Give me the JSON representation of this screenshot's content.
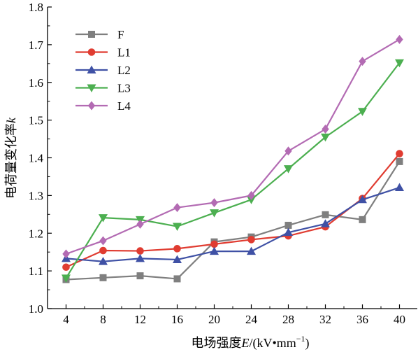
{
  "chart_data": {
    "type": "line",
    "xlabel": "电场强度E/(kV•mm⁻¹)",
    "xlabel_parts": {
      "prefix": "电场强度",
      "var": "E",
      "unit": "/(kV•mm",
      "sup": "−1",
      "close": ")"
    },
    "ylabel": "电荷量变化率k",
    "ylabel_parts": {
      "prefix": "电荷量变化率",
      "var": "k"
    },
    "x": [
      4,
      8,
      12,
      16,
      20,
      24,
      28,
      32,
      36,
      40
    ],
    "xticks": [
      "4",
      "8",
      "12",
      "16",
      "20",
      "24",
      "28",
      "32",
      "36",
      "40"
    ],
    "yticks": [
      "1.0",
      "1.1",
      "1.2",
      "1.3",
      "1.4",
      "1.5",
      "1.6",
      "1.7",
      "1.8"
    ],
    "xlim": [
      2,
      42
    ],
    "ylim": [
      1.0,
      1.8
    ],
    "grid": false,
    "legend_position": "top-left",
    "series": [
      {
        "name": "F",
        "color": "#7f7f7f",
        "marker": "square",
        "values": [
          1.077,
          1.082,
          1.087,
          1.079,
          1.177,
          1.19,
          1.221,
          1.249,
          1.236,
          1.39
        ]
      },
      {
        "name": "L1",
        "color": "#e03c31",
        "marker": "circle",
        "values": [
          1.11,
          1.154,
          1.153,
          1.159,
          1.171,
          1.183,
          1.193,
          1.217,
          1.292,
          1.411
        ]
      },
      {
        "name": "L2",
        "color": "#3f51a5",
        "marker": "triangle-up",
        "values": [
          1.133,
          1.125,
          1.133,
          1.13,
          1.152,
          1.152,
          1.202,
          1.225,
          1.289,
          1.321
        ]
      },
      {
        "name": "L3",
        "color": "#4caf50",
        "marker": "triangle-down",
        "values": [
          1.081,
          1.241,
          1.236,
          1.218,
          1.254,
          1.289,
          1.371,
          1.455,
          1.523,
          1.652
        ]
      },
      {
        "name": "L4",
        "color": "#b36bb3",
        "marker": "diamond",
        "values": [
          1.145,
          1.18,
          1.224,
          1.268,
          1.281,
          1.3,
          1.418,
          1.476,
          1.656,
          1.714
        ]
      }
    ]
  }
}
